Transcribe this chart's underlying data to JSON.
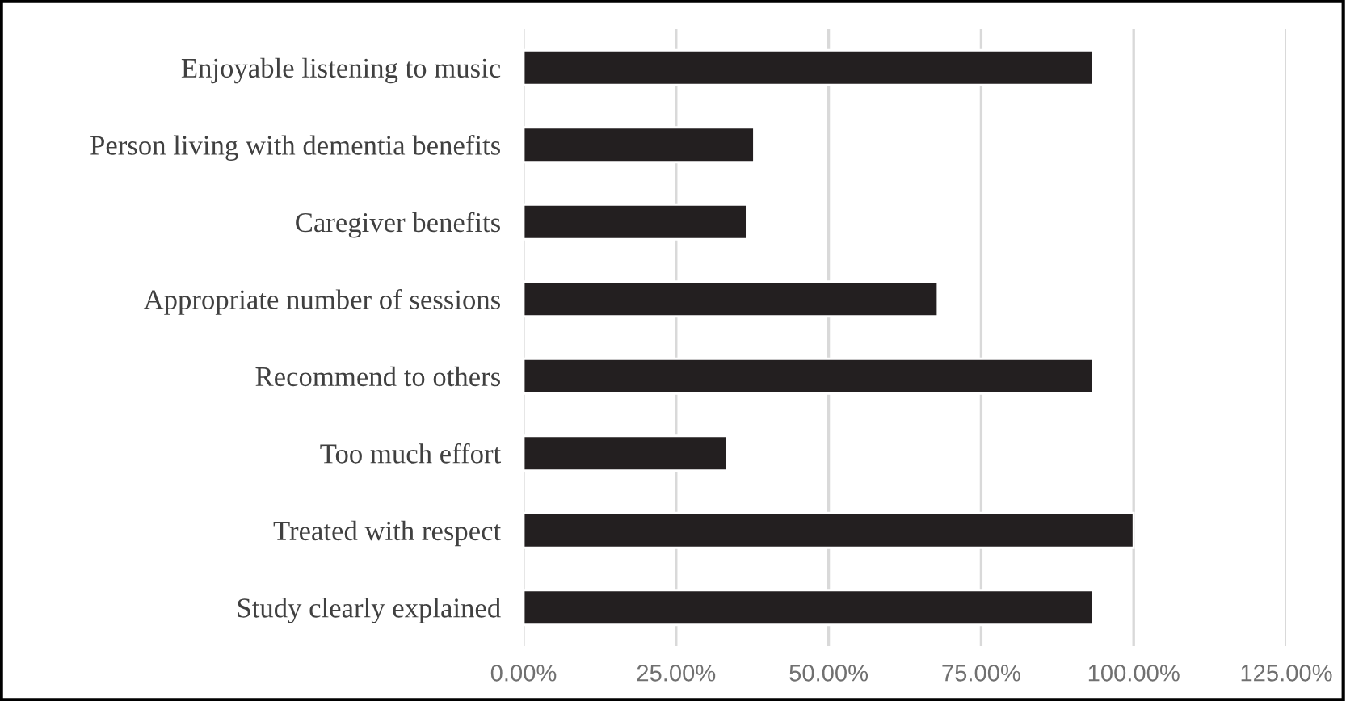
{
  "chart_data": {
    "type": "bar",
    "orientation": "horizontal",
    "categories": [
      "Enjoyable listening to music",
      "Person living with dementia benefits",
      "Caregiver benefits",
      "Appropriate number of sessions",
      "Recommend to others",
      "Too much effort",
      "Treated with respect",
      "Study clearly explained"
    ],
    "values": [
      93.3,
      37.8,
      36.6,
      67.9,
      93.3,
      33.3,
      100,
      93.3
    ],
    "color": "#231f20",
    "xlim": [
      0,
      125
    ],
    "xticks": [
      {
        "value": 0,
        "label": "0.00%"
      },
      {
        "value": 25,
        "label": "25.00%"
      },
      {
        "value": 50,
        "label": "50.00%"
      },
      {
        "value": 75,
        "label": "75.00%"
      },
      {
        "value": 100,
        "label": "100.00%"
      },
      {
        "value": 125,
        "label": "125.00%"
      }
    ],
    "grid": "x"
  }
}
